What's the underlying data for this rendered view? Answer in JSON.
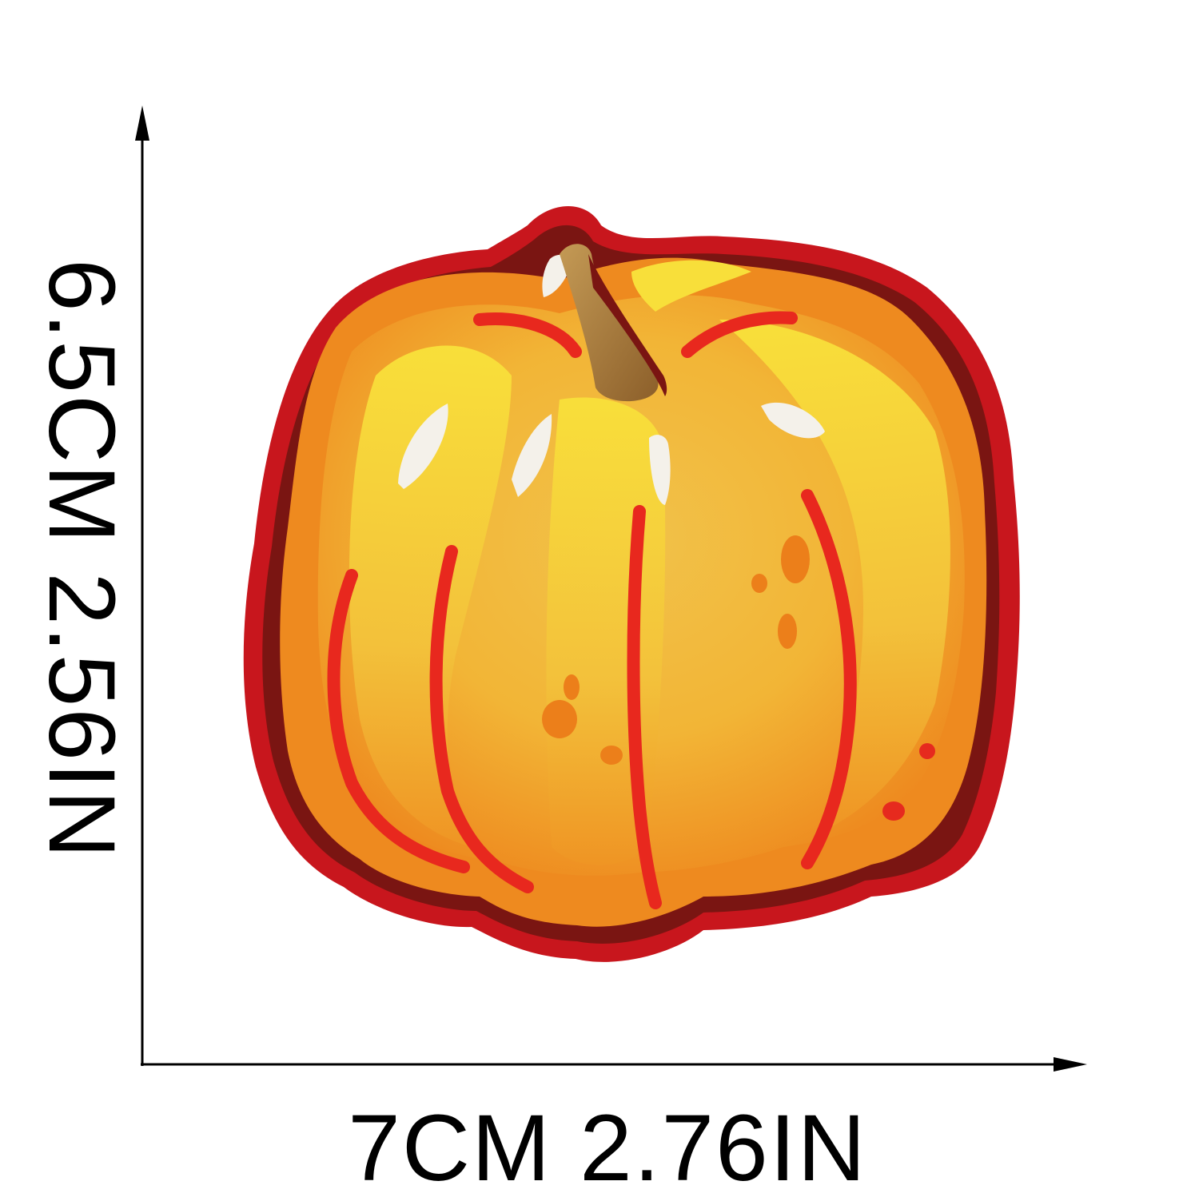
{
  "dimensions": {
    "width_label": "7CM  2.76IN",
    "height_label": "6.5CM  2.56IN"
  },
  "colors": {
    "background": "#ffffff",
    "axis": "#000000",
    "border_red": "#c8161d",
    "border_dark": "#7a1512",
    "pumpkin_orange": "#f08a1c",
    "pumpkin_yellow": "#f6d52c",
    "pumpkin_gold": "#e8b83a",
    "rib_red": "#e8281e",
    "stem_brown": "#9a6a30",
    "highlight": "#f4f1ea"
  },
  "icons": [
    "pumpkin-patch-image",
    "arrow-up-icon",
    "arrow-right-icon"
  ]
}
